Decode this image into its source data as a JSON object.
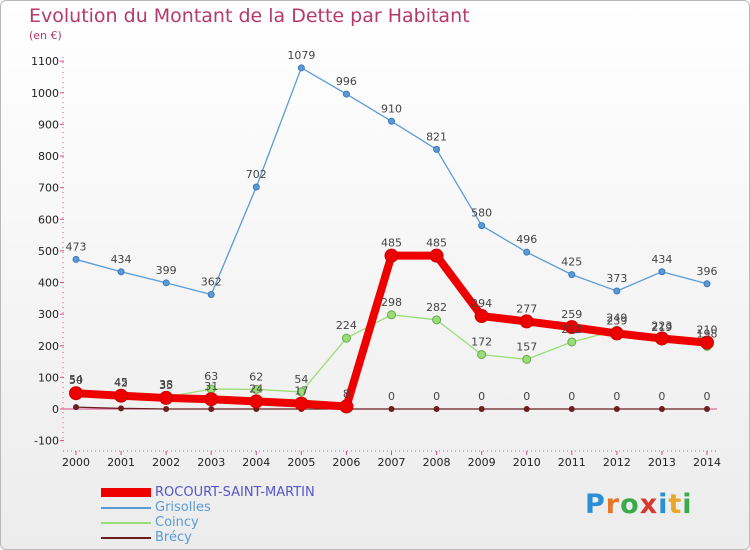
{
  "title": "Evolution du Montant de la Dette par Habitant",
  "subtitle": "(en €)",
  "logo": [
    "P",
    "r",
    "o",
    "x",
    "i",
    "t",
    "i"
  ],
  "logo_colors": [
    "#2b8fd6",
    "#e8762a",
    "#3caa4a",
    "#d63a2b",
    "#2b8fd6",
    "#e8a72a",
    "#3caa4a"
  ],
  "chart_data": {
    "type": "line",
    "x": [
      "2000",
      "2001",
      "2002",
      "2003",
      "2004",
      "2005",
      "2006",
      "2007",
      "2008",
      "2009",
      "2010",
      "2011",
      "2012",
      "2013",
      "2014"
    ],
    "ylim": [
      -100,
      1100
    ],
    "yticks": [
      "-100",
      "0",
      "100",
      "200",
      "300",
      "400",
      "500",
      "600",
      "700",
      "800",
      "900",
      "1000",
      "1100"
    ],
    "grid": false,
    "legend_position": "bottom",
    "series": [
      {
        "name": "Grisolles",
        "color": "#5b9bd5",
        "values": [
          473,
          434,
          399,
          362,
          702,
          1079,
          996,
          910,
          821,
          580,
          496,
          425,
          373,
          434,
          396
        ],
        "labels": [
          "473",
          "434",
          "399",
          "362",
          "702",
          "1079",
          "996",
          "910",
          "821",
          "580",
          "496",
          "425",
          "373",
          "434",
          "396"
        ]
      },
      {
        "name": "Coincy",
        "color": "#99dd77",
        "values": [
          54,
          45,
          38,
          63,
          62,
          54,
          224,
          298,
          282,
          172,
          157,
          212,
          249,
          219,
          198
        ],
        "labels": [
          "54",
          "45",
          "38",
          "63",
          "62",
          "54",
          "224",
          "298",
          "282",
          "172",
          "157",
          "212",
          "249",
          "219",
          "198"
        ]
      },
      {
        "name": "Brécy",
        "color": "#6b1e1e",
        "values": [
          6,
          2,
          0,
          0,
          0,
          0,
          0,
          0,
          0,
          0,
          0,
          0,
          0,
          0,
          0
        ],
        "labels": [
          "",
          "",
          "",
          "",
          "",
          "",
          "",
          "0",
          "0",
          "0",
          "0",
          "0",
          "0",
          "0",
          "0"
        ]
      },
      {
        "name": "ROCOURT-SAINT-MARTIN",
        "color": "#ee0000",
        "values": [
          50,
          42,
          35,
          31,
          24,
          17,
          8,
          485,
          485,
          294,
          277,
          259,
          239,
          223,
          210
        ],
        "labels": [
          "50",
          "42",
          "35",
          "31",
          "24",
          "17",
          "8",
          "485",
          "485",
          "294",
          "277",
          "259",
          "239",
          "223",
          "210"
        ]
      }
    ],
    "legend": [
      {
        "name": "ROCOURT-SAINT-MARTIN",
        "color": "#ee0000",
        "text_color": "#5555cc"
      },
      {
        "name": "Grisolles",
        "color": "#5b9bd5",
        "text_color": "#5b9bd5"
      },
      {
        "name": "Coincy",
        "color": "#99dd77",
        "text_color": "#5b9bd5"
      },
      {
        "name": "Brécy",
        "color": "#6b1e1e",
        "text_color": "#5b9bd5"
      }
    ]
  }
}
